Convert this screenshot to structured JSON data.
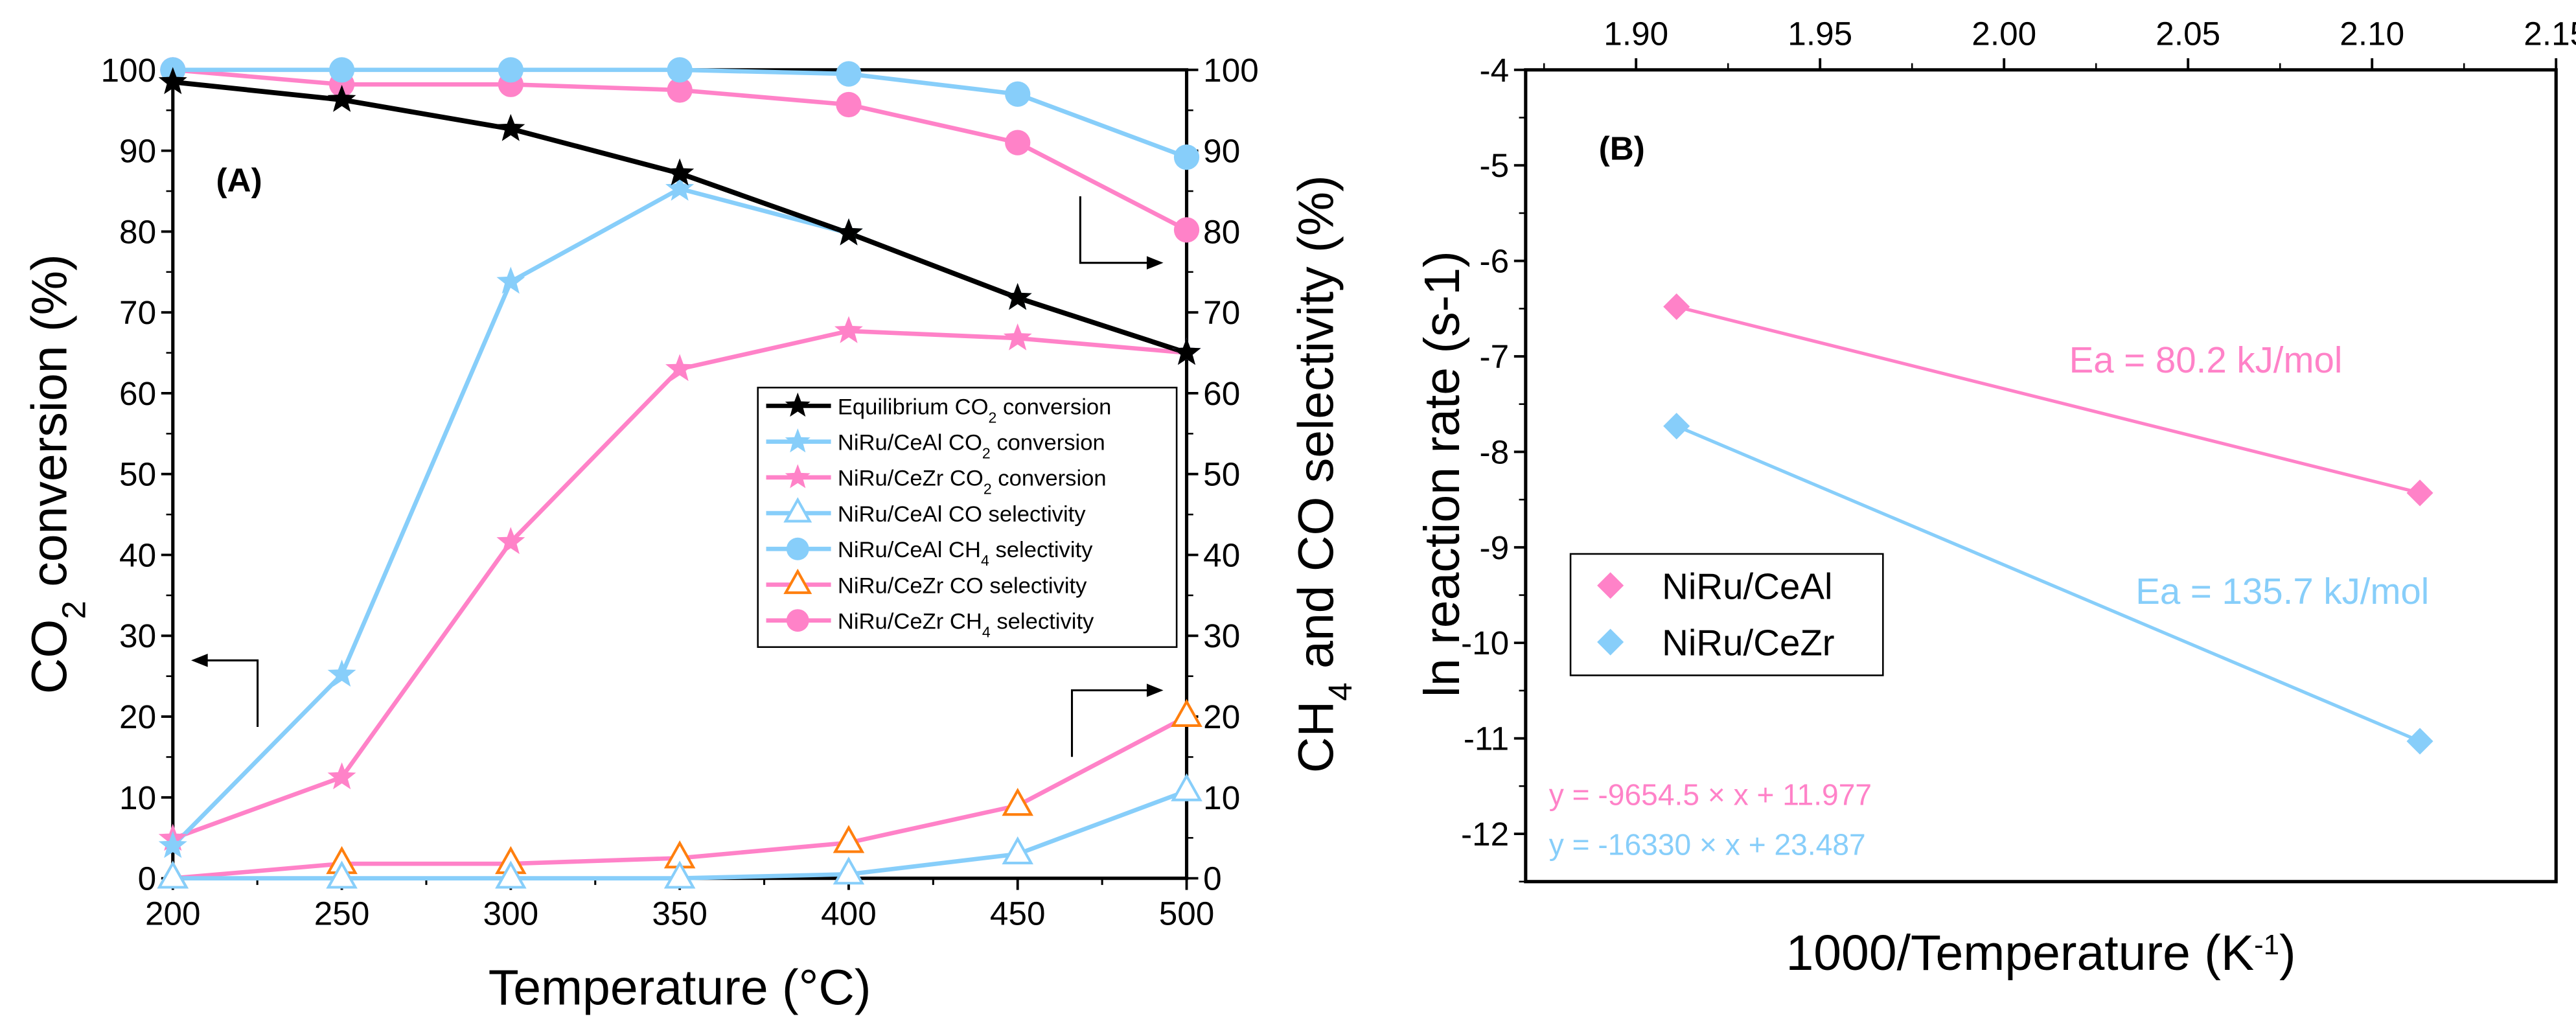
{
  "chart_data": [
    {
      "type": "line",
      "panel_label": "(A)",
      "xlabel": "Temperature (°C)",
      "ylabel": "CO2 conversion (%)",
      "y2label": "CH4 and CO selectivity (%)",
      "xlim": [
        200,
        500
      ],
      "ylim": [
        0,
        100
      ],
      "y2lim": [
        0,
        100
      ],
      "xticks": [
        200,
        250,
        300,
        350,
        400,
        450,
        500
      ],
      "yticks": [
        0,
        10,
        20,
        30,
        40,
        50,
        60,
        70,
        80,
        90,
        100
      ],
      "x": [
        200,
        250,
        300,
        350,
        400,
        450,
        500
      ],
      "legend_position": "center-right",
      "series": [
        {
          "name": "Equilibrium CO2 conversion",
          "color": "#000000",
          "marker": "star",
          "axis": "left",
          "values": [
            98.5,
            96.3,
            92.7,
            87.2,
            79.8,
            71.8,
            65.0
          ]
        },
        {
          "name": "NiRu/CeAl CO2 conversion",
          "color": "#87CEFA",
          "marker": "star",
          "axis": "left",
          "values": [
            4.0,
            25.2,
            73.8,
            85.3,
            79.8,
            71.8,
            65.0
          ]
        },
        {
          "name": "NiRu/CeZr CO2 conversion",
          "color": "#FF82C8",
          "marker": "star",
          "axis": "left",
          "values": [
            4.9,
            12.5,
            41.6,
            63.0,
            67.7,
            66.8,
            65.0
          ]
        },
        {
          "name": "NiRu/CeAl CO selectivity",
          "color": "#87CEFA",
          "marker": "triangle-open",
          "axis": "right",
          "values": [
            0.0,
            0.0,
            0.0,
            0.0,
            0.5,
            3.0,
            10.8
          ]
        },
        {
          "name": "NiRu/CeAl CH4 selectivity",
          "color": "#87CEFA",
          "marker": "circle",
          "axis": "right",
          "values": [
            100,
            100,
            100,
            100,
            99.5,
            97.0,
            89.2
          ]
        },
        {
          "name": "NiRu/CeZr CO selectivity",
          "color": "#FF82C8",
          "markerColor": "#FF7F0E",
          "marker": "triangle-open",
          "axis": "right",
          "values": [
            0.0,
            1.8,
            1.8,
            2.5,
            4.4,
            9.0,
            20.0
          ]
        },
        {
          "name": "NiRu/CeZr CH4 selectivity",
          "color": "#FF82C8",
          "marker": "circle",
          "axis": "right",
          "values": [
            100,
            98.2,
            98.2,
            97.5,
            95.7,
            91.0,
            80.2
          ]
        }
      ],
      "legend": [
        {
          "pre": "Equilibrium CO",
          "sub": "2",
          "post": " conversion"
        },
        {
          "pre": "NiRu/CeAl CO",
          "sub": "2",
          "post": " conversion"
        },
        {
          "pre": "NiRu/CeZr CO",
          "sub": "2",
          "post": " conversion"
        },
        {
          "pre": "NiRu/CeAl CO selectivity",
          "sub": "",
          "post": ""
        },
        {
          "pre": "NiRu/CeAl CH",
          "sub": "4",
          "post": " selectivity"
        },
        {
          "pre": "NiRu/CeZr CO selectivity",
          "sub": "",
          "post": ""
        },
        {
          "pre": "NiRu/CeZr CH",
          "sub": "4",
          "post": " selectivity"
        }
      ]
    },
    {
      "type": "scatter",
      "panel_label": "(B)",
      "xlabel": "1000/Temperature (K-1)",
      "ylabel": "ln reaction rate (s-1)",
      "xlim": [
        1.87,
        2.15
      ],
      "ylim": [
        -12.5,
        -4
      ],
      "xticks": [
        "1.90",
        "1.95",
        "2.00",
        "2.05",
        "2.10",
        "2.15"
      ],
      "yticks": [
        -4,
        -5,
        -6,
        -7,
        -8,
        -9,
        -10,
        -11,
        -12
      ],
      "legend_position": "center-left",
      "series": [
        {
          "name": "NiRu/CeAl",
          "color": "#FF82C8",
          "marker": "diamond",
          "x": [
            1.911,
            2.113
          ],
          "y": [
            -6.48,
            -8.43
          ],
          "fit": "y = -9654.5 × x + 11.977",
          "ea": "Ea = 80.2 kJ/mol"
        },
        {
          "name": "NiRu/CeZr",
          "color": "#87CEFA",
          "marker": "diamond",
          "x": [
            1.911,
            2.113
          ],
          "y": [
            -7.73,
            -11.03
          ],
          "fit": "y = -16330 × x + 23.487",
          "ea": "Ea = 135.7 kJ/mol"
        }
      ]
    }
  ]
}
